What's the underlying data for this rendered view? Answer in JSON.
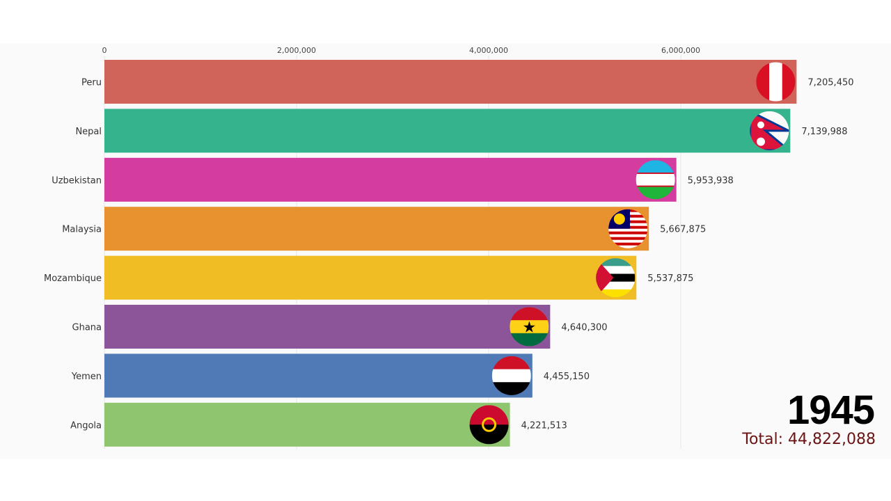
{
  "chart_data": {
    "type": "bar",
    "orientation": "horizontal",
    "categories": [
      "Peru",
      "Nepal",
      "Uzbekistan",
      "Malaysia",
      "Mozambique",
      "Ghana",
      "Yemen",
      "Angola"
    ],
    "values": [
      7205450,
      7139988,
      5953938,
      5667875,
      5537875,
      4640300,
      4455150,
      4221513
    ],
    "value_labels": [
      "7,205,450",
      "7,139,988",
      "5,953,938",
      "5,667,875",
      "5,537,875",
      "4,640,300",
      "4,455,150",
      "4,221,513"
    ],
    "colors": [
      "#d0645a",
      "#35b38c",
      "#d43d9f",
      "#e8912f",
      "#f0bd24",
      "#8c5599",
      "#4f7ab5",
      "#8fc56f"
    ],
    "flags": [
      "peru-flag-icon",
      "nepal-flag-icon",
      "uzbekistan-flag-icon",
      "malaysia-flag-icon",
      "mozambique-flag-icon",
      "ghana-flag-icon",
      "yemen-flag-icon",
      "angola-flag-icon"
    ],
    "xticks": [
      0,
      2000000,
      4000000,
      6000000
    ],
    "xtick_labels": [
      "0",
      "2,000,000",
      "4,000,000",
      "6,000,000"
    ],
    "xlim": [
      0,
      7200000
    ],
    "axis_position": "top",
    "grid": true,
    "title": "",
    "xlabel": "",
    "ylabel": ""
  },
  "year": "1945",
  "total": "Total: 44,822,088"
}
